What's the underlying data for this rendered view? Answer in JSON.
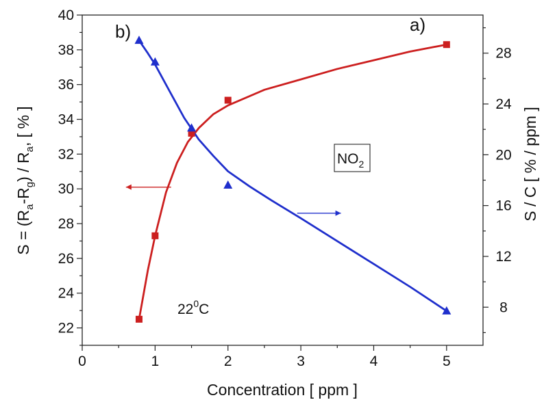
{
  "chart_data": {
    "type": "line",
    "xlabel": "Concentration  [ ppm ]",
    "ylabel_left": {
      "text": "S = (R",
      "parts": [
        "S = (R",
        "a",
        "-R",
        "g",
        ") / R",
        "a",
        ", [ % ]"
      ]
    },
    "ylabel_right": "S / C   [ % / ppm ]",
    "xlim": [
      0,
      5.5
    ],
    "ylim_left": [
      21,
      40
    ],
    "ylim_right": [
      5,
      31
    ],
    "x_ticks": [
      0,
      1,
      2,
      3,
      4,
      5
    ],
    "x_tick_labels": [
      "0",
      "1",
      "2",
      "3",
      "4",
      "5"
    ],
    "y_left_ticks": [
      22,
      24,
      26,
      28,
      30,
      32,
      34,
      36,
      38,
      40
    ],
    "y_left_tick_labels": [
      "22",
      "24",
      "26",
      "28",
      "30",
      "32",
      "34",
      "36",
      "38",
      "40"
    ],
    "y_right_ticks": [
      8,
      12,
      16,
      20,
      24,
      28
    ],
    "y_right_tick_labels": [
      "8",
      "12",
      "16",
      "20",
      "24",
      "28"
    ],
    "series": [
      {
        "name": "a)",
        "axis": "left",
        "color": "#cc1f1f",
        "marker": "square",
        "points": [
          [
            0.78,
            22.5
          ],
          [
            1.0,
            27.3
          ],
          [
            1.5,
            33.2
          ],
          [
            2.0,
            35.1
          ],
          [
            5.0,
            38.3
          ]
        ],
        "curve": [
          [
            0.78,
            22.5
          ],
          [
            0.9,
            25.3
          ],
          [
            1.0,
            27.3
          ],
          [
            1.15,
            29.8
          ],
          [
            1.3,
            31.5
          ],
          [
            1.45,
            32.7
          ],
          [
            1.6,
            33.5
          ],
          [
            1.8,
            34.3
          ],
          [
            2.0,
            34.8
          ],
          [
            2.5,
            35.7
          ],
          [
            3.0,
            36.3
          ],
          [
            3.5,
            36.9
          ],
          [
            4.0,
            37.4
          ],
          [
            4.5,
            37.9
          ],
          [
            5.0,
            38.3
          ]
        ]
      },
      {
        "name": "b)",
        "axis": "right",
        "color": "#1f2fcc",
        "marker": "triangle",
        "points": [
          [
            0.78,
            29.0
          ],
          [
            1.0,
            27.3
          ],
          [
            1.5,
            22.1
          ],
          [
            2.0,
            17.6
          ],
          [
            5.0,
            7.7
          ]
        ],
        "curve": [
          [
            0.78,
            29.0
          ],
          [
            0.9,
            28.0
          ],
          [
            1.0,
            27.1
          ],
          [
            1.2,
            25.0
          ],
          [
            1.4,
            22.9
          ],
          [
            1.6,
            21.2
          ],
          [
            1.8,
            19.9
          ],
          [
            2.0,
            18.7
          ],
          [
            2.3,
            17.5
          ],
          [
            2.6,
            16.4
          ],
          [
            3.0,
            15.0
          ],
          [
            3.5,
            13.2
          ],
          [
            4.0,
            11.4
          ],
          [
            4.5,
            9.6
          ],
          [
            5.0,
            7.7
          ]
        ]
      }
    ],
    "annotations": {
      "gas_label": {
        "base": "NO",
        "sub": "2"
      },
      "temperature": {
        "base": "22",
        "sup": "0",
        "unit": "C"
      }
    },
    "arrows": [
      {
        "series": "a)",
        "axis": "left",
        "from": [
          1.22,
          30.1
        ],
        "to": [
          0.6,
          30.1
        ],
        "color": "#cc1f1f"
      },
      {
        "series": "b)",
        "axis": "right",
        "from": [
          2.95,
          15.4
        ],
        "to": [
          3.55,
          15.4
        ],
        "color": "#1f2fcc"
      }
    ],
    "grid": false
  }
}
